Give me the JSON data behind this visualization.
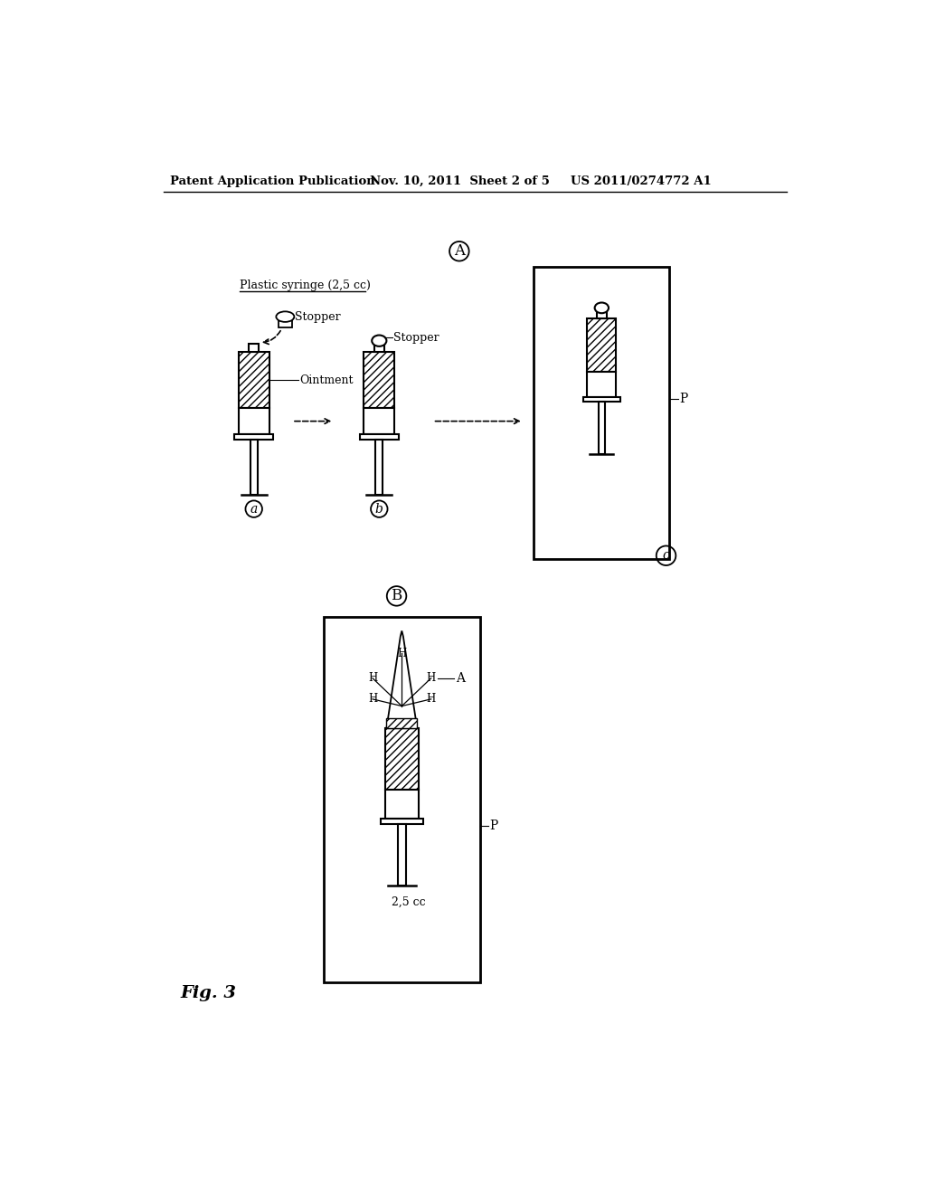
{
  "bg_color": "#ffffff",
  "header_left": "Patent Application Publication",
  "header_mid": "Nov. 10, 2011  Sheet 2 of 5",
  "header_right": "US 2011/0274772 A1",
  "fig_label_A": "A",
  "fig_label_B": "B",
  "fig3_label": "Fig. 3",
  "label_plastic_syringe": "Plastic syringe (2,5 cc)",
  "label_stopper_a": "Stopper",
  "label_ointment": "Ointment",
  "label_stopper_b": "Stopper",
  "label_P_c": "P",
  "label_P_b2": "P",
  "label_A_b2": "A",
  "label_25cc": "2,5 cc",
  "circle_a": "a",
  "circle_b": "b",
  "circle_c": "c"
}
